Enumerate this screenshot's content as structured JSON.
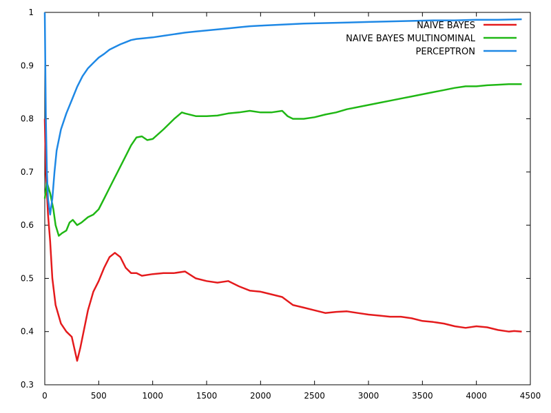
{
  "chart_data": {
    "type": "line",
    "title": "",
    "xlabel": "",
    "ylabel": "",
    "xlim": [
      0,
      4500
    ],
    "ylim": [
      0.3,
      1.0
    ],
    "x_ticks": [
      "0",
      "500",
      "1000",
      "1500",
      "2000",
      "2500",
      "3000",
      "3500",
      "4000",
      "4500"
    ],
    "y_ticks": [
      "0.3",
      "0.4",
      "0.5",
      "0.6",
      "0.7",
      "0.8",
      "0.9",
      "1"
    ],
    "grid": false,
    "legend_position": "top-right",
    "series": [
      {
        "name": "NAIVE BAYES",
        "color": "#e41a1c",
        "points": [
          [
            0,
            0.8
          ],
          [
            10,
            0.7
          ],
          [
            30,
            0.62
          ],
          [
            50,
            0.57
          ],
          [
            70,
            0.5
          ],
          [
            100,
            0.45
          ],
          [
            150,
            0.415
          ],
          [
            200,
            0.4
          ],
          [
            250,
            0.39
          ],
          [
            300,
            0.345
          ],
          [
            330,
            0.37
          ],
          [
            360,
            0.4
          ],
          [
            400,
            0.44
          ],
          [
            450,
            0.475
          ],
          [
            500,
            0.495
          ],
          [
            550,
            0.52
          ],
          [
            600,
            0.54
          ],
          [
            650,
            0.548
          ],
          [
            700,
            0.54
          ],
          [
            750,
            0.52
          ],
          [
            800,
            0.51
          ],
          [
            850,
            0.51
          ],
          [
            900,
            0.505
          ],
          [
            1000,
            0.508
          ],
          [
            1100,
            0.51
          ],
          [
            1200,
            0.51
          ],
          [
            1300,
            0.513
          ],
          [
            1400,
            0.5
          ],
          [
            1500,
            0.495
          ],
          [
            1600,
            0.492
          ],
          [
            1700,
            0.495
          ],
          [
            1800,
            0.485
          ],
          [
            1900,
            0.477
          ],
          [
            2000,
            0.475
          ],
          [
            2100,
            0.47
          ],
          [
            2200,
            0.465
          ],
          [
            2300,
            0.45
          ],
          [
            2400,
            0.445
          ],
          [
            2500,
            0.44
          ],
          [
            2600,
            0.435
          ],
          [
            2700,
            0.437
          ],
          [
            2800,
            0.438
          ],
          [
            2900,
            0.435
          ],
          [
            3000,
            0.432
          ],
          [
            3100,
            0.43
          ],
          [
            3200,
            0.428
          ],
          [
            3300,
            0.428
          ],
          [
            3400,
            0.425
          ],
          [
            3500,
            0.42
          ],
          [
            3600,
            0.418
          ],
          [
            3700,
            0.415
          ],
          [
            3800,
            0.41
          ],
          [
            3900,
            0.407
          ],
          [
            4000,
            0.41
          ],
          [
            4100,
            0.408
          ],
          [
            4200,
            0.403
          ],
          [
            4300,
            0.4
          ],
          [
            4350,
            0.401
          ],
          [
            4420,
            0.4
          ]
        ]
      },
      {
        "name": "NAIVE BAYES MULTINOMINAL",
        "color": "#1fb714",
        "points": [
          [
            0,
            0.65
          ],
          [
            20,
            0.68
          ],
          [
            50,
            0.66
          ],
          [
            80,
            0.63
          ],
          [
            100,
            0.6
          ],
          [
            130,
            0.58
          ],
          [
            160,
            0.585
          ],
          [
            200,
            0.59
          ],
          [
            230,
            0.605
          ],
          [
            260,
            0.61
          ],
          [
            300,
            0.6
          ],
          [
            340,
            0.605
          ],
          [
            400,
            0.615
          ],
          [
            450,
            0.62
          ],
          [
            500,
            0.63
          ],
          [
            550,
            0.65
          ],
          [
            600,
            0.67
          ],
          [
            650,
            0.69
          ],
          [
            700,
            0.71
          ],
          [
            750,
            0.73
          ],
          [
            800,
            0.75
          ],
          [
            850,
            0.765
          ],
          [
            900,
            0.767
          ],
          [
            950,
            0.76
          ],
          [
            1000,
            0.762
          ],
          [
            1100,
            0.78
          ],
          [
            1200,
            0.8
          ],
          [
            1270,
            0.812
          ],
          [
            1300,
            0.81
          ],
          [
            1400,
            0.805
          ],
          [
            1500,
            0.805
          ],
          [
            1600,
            0.806
          ],
          [
            1700,
            0.81
          ],
          [
            1800,
            0.812
          ],
          [
            1900,
            0.815
          ],
          [
            2000,
            0.812
          ],
          [
            2100,
            0.812
          ],
          [
            2200,
            0.815
          ],
          [
            2250,
            0.805
          ],
          [
            2300,
            0.8
          ],
          [
            2400,
            0.8
          ],
          [
            2500,
            0.803
          ],
          [
            2600,
            0.808
          ],
          [
            2700,
            0.812
          ],
          [
            2800,
            0.818
          ],
          [
            2900,
            0.822
          ],
          [
            3000,
            0.826
          ],
          [
            3100,
            0.83
          ],
          [
            3200,
            0.834
          ],
          [
            3300,
            0.838
          ],
          [
            3400,
            0.842
          ],
          [
            3500,
            0.846
          ],
          [
            3600,
            0.85
          ],
          [
            3700,
            0.854
          ],
          [
            3800,
            0.858
          ],
          [
            3900,
            0.861
          ],
          [
            4000,
            0.861
          ],
          [
            4100,
            0.863
          ],
          [
            4200,
            0.864
          ],
          [
            4300,
            0.865
          ],
          [
            4420,
            0.865
          ]
        ]
      },
      {
        "name": "PERCEPTRON",
        "color": "#1e88e5",
        "points": [
          [
            0,
            1.0
          ],
          [
            5,
            0.9
          ],
          [
            10,
            0.8
          ],
          [
            20,
            0.7
          ],
          [
            30,
            0.65
          ],
          [
            50,
            0.62
          ],
          [
            70,
            0.65
          ],
          [
            90,
            0.7
          ],
          [
            110,
            0.74
          ],
          [
            150,
            0.78
          ],
          [
            200,
            0.81
          ],
          [
            250,
            0.835
          ],
          [
            300,
            0.86
          ],
          [
            350,
            0.88
          ],
          [
            400,
            0.895
          ],
          [
            450,
            0.905
          ],
          [
            500,
            0.915
          ],
          [
            550,
            0.922
          ],
          [
            600,
            0.93
          ],
          [
            650,
            0.935
          ],
          [
            700,
            0.94
          ],
          [
            750,
            0.944
          ],
          [
            800,
            0.948
          ],
          [
            850,
            0.95
          ],
          [
            900,
            0.951
          ],
          [
            1000,
            0.953
          ],
          [
            1100,
            0.956
          ],
          [
            1200,
            0.959
          ],
          [
            1300,
            0.962
          ],
          [
            1400,
            0.964
          ],
          [
            1500,
            0.966
          ],
          [
            1600,
            0.968
          ],
          [
            1700,
            0.97
          ],
          [
            1800,
            0.972
          ],
          [
            1900,
            0.974
          ],
          [
            2000,
            0.975
          ],
          [
            2200,
            0.977
          ],
          [
            2400,
            0.979
          ],
          [
            2600,
            0.98
          ],
          [
            2800,
            0.981
          ],
          [
            3000,
            0.982
          ],
          [
            3200,
            0.983
          ],
          [
            3400,
            0.984
          ],
          [
            3600,
            0.985
          ],
          [
            3800,
            0.985
          ],
          [
            4000,
            0.986
          ],
          [
            4200,
            0.986
          ],
          [
            4420,
            0.987
          ]
        ]
      }
    ]
  }
}
